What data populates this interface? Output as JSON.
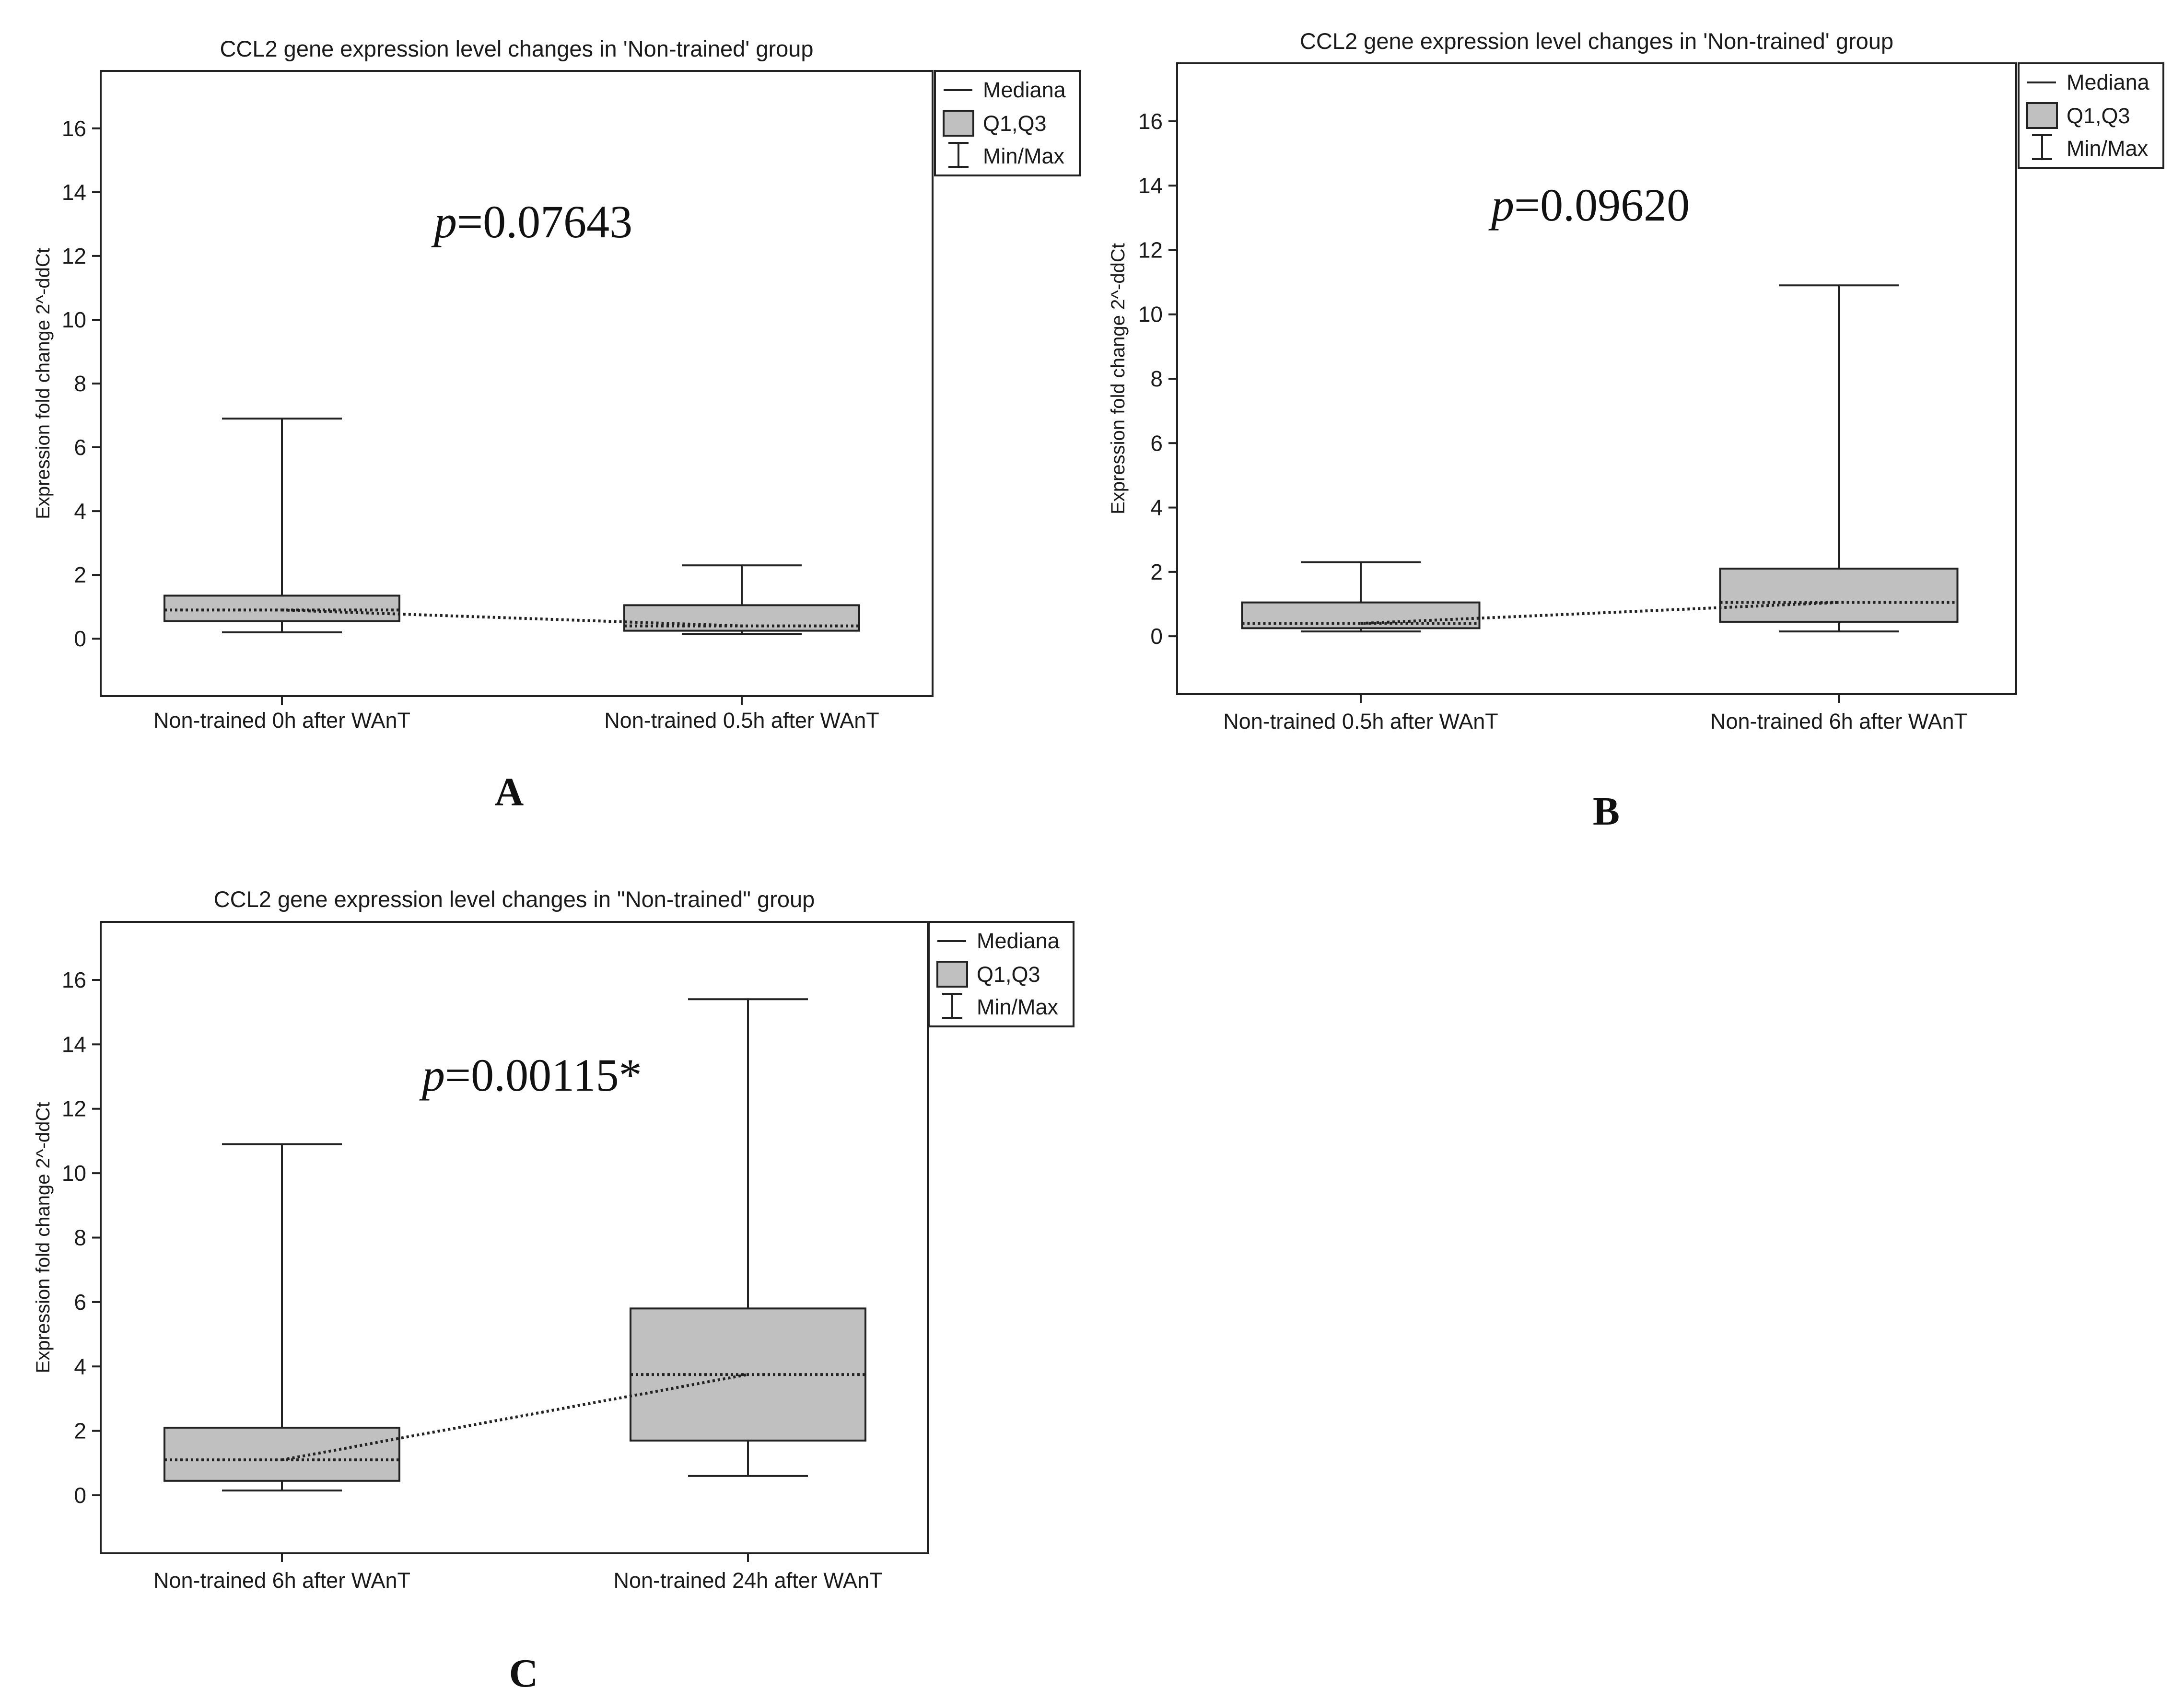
{
  "chart_data": [
    {
      "type": "box",
      "panel": "A",
      "title": "CCL2 gene expression level changes in 'Non-trained' group",
      "ylabel": "Expression fold change 2^-ddCt",
      "ylim": [
        -1.8,
        17.8
      ],
      "yticks": [
        0,
        2,
        4,
        6,
        8,
        10,
        12,
        14,
        16
      ],
      "categories": [
        "Non-trained 0h after WAnT",
        "Non-trained 0.5h after WAnT"
      ],
      "boxes": [
        {
          "min": 0.2,
          "q1": 0.55,
          "median": 0.9,
          "q3": 1.35,
          "max": 6.9
        },
        {
          "min": 0.15,
          "q1": 0.25,
          "median": 0.4,
          "q3": 1.05,
          "max": 2.3
        }
      ],
      "annotation": {
        "p_label": "p",
        "p_value": "=0.07643"
      },
      "legend": [
        "Mediana",
        "Q1,Q3",
        "Min/Max"
      ]
    },
    {
      "type": "box",
      "panel": "B",
      "title": "CCL2 gene expression level changes in 'Non-trained' group",
      "ylabel": "Expression fold change 2^-ddCt",
      "ylim": [
        -1.8,
        17.8
      ],
      "yticks": [
        0,
        2,
        4,
        6,
        8,
        10,
        12,
        14,
        16
      ],
      "categories": [
        "Non-trained 0.5h after WAnT",
        "Non-trained 6h after WAnT"
      ],
      "boxes": [
        {
          "min": 0.15,
          "q1": 0.25,
          "median": 0.4,
          "q3": 1.05,
          "max": 2.3
        },
        {
          "min": 0.15,
          "q1": 0.45,
          "median": 1.05,
          "q3": 2.1,
          "max": 10.9
        }
      ],
      "annotation": {
        "p_label": "p",
        "p_value": "=0.09620"
      },
      "legend": [
        "Mediana",
        "Q1,Q3",
        "Min/Max"
      ]
    },
    {
      "type": "box",
      "panel": "C",
      "title": "CCL2 gene expression level changes in \"Non-trained\" group",
      "ylabel": "Expression fold change 2^-ddCt",
      "ylim": [
        -1.8,
        17.8
      ],
      "yticks": [
        0,
        2,
        4,
        6,
        8,
        10,
        12,
        14,
        16
      ],
      "categories": [
        "Non-trained 6h after WAnT",
        "Non-trained 24h after WAnT"
      ],
      "boxes": [
        {
          "min": 0.15,
          "q1": 0.45,
          "median": 1.1,
          "q3": 2.1,
          "max": 10.9
        },
        {
          "min": 0.6,
          "q1": 1.7,
          "median": 3.75,
          "q3": 5.8,
          "max": 15.4
        }
      ],
      "annotation": {
        "p_label": "p",
        "p_value": "=0.00115*"
      },
      "legend": [
        "Mediana",
        "Q1,Q3",
        "Min/Max"
      ]
    }
  ]
}
